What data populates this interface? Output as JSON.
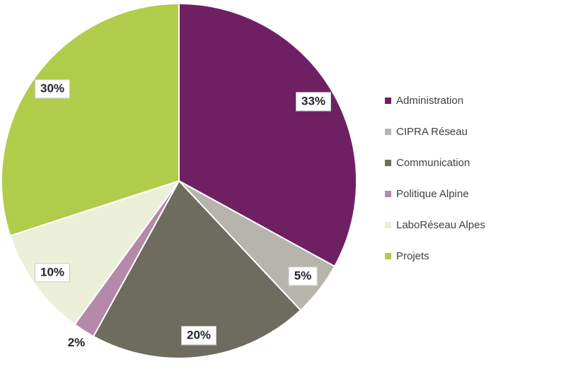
{
  "chart_data": {
    "type": "pie",
    "title": "",
    "categories": [
      "Administration",
      "CIPRA Réseau",
      "Communication",
      "Politique Alpine",
      "LaboRéseau Alpes",
      "Projets"
    ],
    "values": [
      33,
      5,
      20,
      2,
      10,
      30
    ],
    "labels": [
      "33%",
      "5%",
      "20%",
      "2%",
      "10%",
      "30%"
    ],
    "colors": [
      "#6F2063",
      "#B7B4AE",
      "#6E6C5F",
      "#B489A9",
      "#EDF0D9",
      "#B1CC4A"
    ],
    "start_angle_deg": 0,
    "direction": "clockwise",
    "legend_position": "right",
    "label_layout": {
      "inside_r_frac": 0.88,
      "outside_r_frac": 1.08,
      "outside_threshold_pct": 3
    }
  },
  "style": {
    "background": "#FFFFFF",
    "slice_border": "#FFFFFF",
    "label_box_fill": "#FFFFFF",
    "label_box_border": "#C8C8C8",
    "label_text_color": "#24242C",
    "legend_text_color": "#404040"
  }
}
